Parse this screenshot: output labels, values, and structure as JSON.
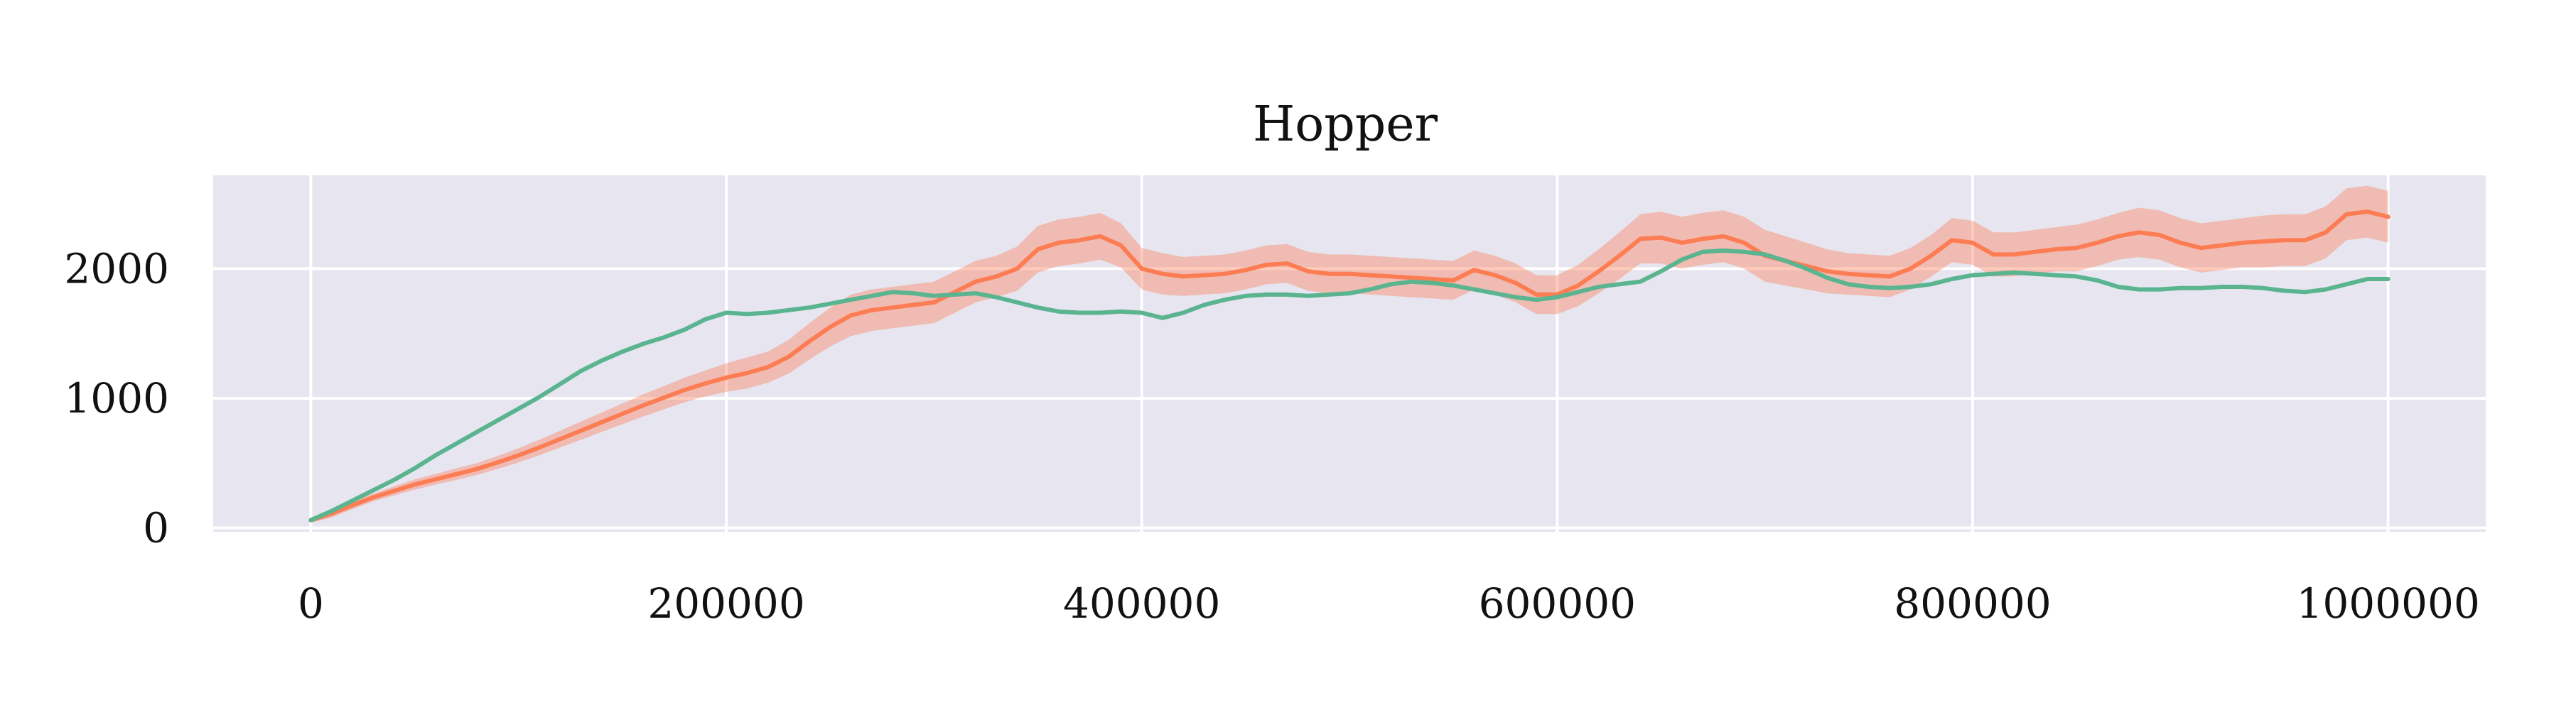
{
  "chart_data": {
    "type": "line",
    "title": "Hopper",
    "xlabel": "",
    "ylabel": "",
    "xlim": [
      -47000,
      1047000
    ],
    "ylim": [
      -30,
      2720
    ],
    "x_ticks": [
      0,
      200000,
      400000,
      600000,
      800000,
      1000000
    ],
    "x_tick_labels": [
      "0",
      "200000",
      "400000",
      "600000",
      "800000",
      "1000000"
    ],
    "y_ticks": [
      0,
      1000,
      2000
    ],
    "y_tick_labels": [
      "0",
      "1000",
      "2000"
    ],
    "grid": true,
    "legend": "none",
    "background": "#e6e5f0",
    "x": [
      0,
      10000,
      20000,
      30000,
      40000,
      50000,
      60000,
      70000,
      80000,
      90000,
      100000,
      110000,
      120000,
      130000,
      140000,
      150000,
      160000,
      170000,
      180000,
      190000,
      200000,
      210000,
      220000,
      230000,
      240000,
      250000,
      260000,
      270000,
      280000,
      290000,
      300000,
      310000,
      320000,
      330000,
      340000,
      350000,
      360000,
      370000,
      380000,
      390000,
      400000,
      410000,
      420000,
      430000,
      440000,
      450000,
      460000,
      470000,
      480000,
      490000,
      500000,
      510000,
      520000,
      530000,
      540000,
      550000,
      560000,
      570000,
      580000,
      590000,
      600000,
      610000,
      620000,
      630000,
      640000,
      650000,
      660000,
      670000,
      680000,
      690000,
      700000,
      710000,
      720000,
      730000,
      740000,
      750000,
      760000,
      770000,
      780000,
      790000,
      800000,
      810000,
      820000,
      830000,
      840000,
      850000,
      860000,
      870000,
      880000,
      890000,
      900000,
      910000,
      920000,
      930000,
      940000,
      950000,
      960000,
      970000,
      980000,
      990000,
      1000000
    ],
    "series": [
      {
        "color": "#fc7d54",
        "values": [
          60,
          110,
          175,
          235,
          285,
          335,
          375,
          415,
          455,
          505,
          560,
          620,
          685,
          750,
          815,
          880,
          945,
          1005,
          1065,
          1115,
          1160,
          1195,
          1240,
          1320,
          1440,
          1550,
          1640,
          1680,
          1700,
          1720,
          1740,
          1820,
          1900,
          1940,
          2000,
          2150,
          2200,
          2220,
          2250,
          2180,
          2000,
          1960,
          1940,
          1950,
          1960,
          1990,
          2030,
          2040,
          1980,
          1960,
          1960,
          1950,
          1940,
          1930,
          1920,
          1910,
          1990,
          1950,
          1890,
          1800,
          1800,
          1870,
          1980,
          2100,
          2230,
          2240,
          2200,
          2230,
          2250,
          2200,
          2100,
          2060,
          2020,
          1980,
          1960,
          1950,
          1940,
          2000,
          2100,
          2220,
          2200,
          2110,
          2110,
          2130,
          2150,
          2160,
          2200,
          2250,
          2280,
          2260,
          2200,
          2160,
          2180,
          2200,
          2210,
          2220,
          2220,
          2280,
          2420,
          2440,
          2400
        ],
        "band": [
          20,
          30,
          30,
          30,
          35,
          40,
          40,
          45,
          45,
          50,
          55,
          60,
          65,
          70,
          75,
          80,
          85,
          90,
          95,
          100,
          110,
          120,
          120,
          130,
          140,
          150,
          160,
          160,
          160,
          160,
          160,
          160,
          160,
          160,
          170,
          180,
          180,
          180,
          180,
          170,
          160,
          160,
          150,
          150,
          150,
          150,
          150,
          150,
          150,
          150,
          150,
          150,
          150,
          150,
          150,
          150,
          150,
          150,
          150,
          150,
          150,
          160,
          170,
          180,
          190,
          200,
          200,
          200,
          200,
          200,
          200,
          190,
          180,
          170,
          160,
          160,
          160,
          160,
          160,
          170,
          170,
          170,
          170,
          170,
          170,
          180,
          180,
          180,
          190,
          190,
          190,
          190,
          190,
          190,
          200,
          200,
          200,
          200,
          200,
          200,
          200
        ]
      },
      {
        "color": "#5ab48f",
        "values": [
          60,
          130,
          210,
          290,
          370,
          460,
          560,
          650,
          740,
          830,
          920,
          1010,
          1110,
          1210,
          1290,
          1360,
          1420,
          1470,
          1530,
          1610,
          1660,
          1650,
          1660,
          1680,
          1700,
          1730,
          1760,
          1790,
          1820,
          1810,
          1790,
          1800,
          1810,
          1780,
          1740,
          1700,
          1670,
          1660,
          1660,
          1670,
          1660,
          1620,
          1660,
          1720,
          1760,
          1790,
          1800,
          1800,
          1790,
          1800,
          1810,
          1840,
          1880,
          1900,
          1890,
          1870,
          1840,
          1810,
          1780,
          1760,
          1780,
          1820,
          1860,
          1880,
          1900,
          1980,
          2070,
          2130,
          2140,
          2130,
          2110,
          2060,
          2000,
          1930,
          1880,
          1860,
          1850,
          1860,
          1880,
          1920,
          1950,
          1960,
          1970,
          1960,
          1950,
          1940,
          1910,
          1860,
          1840,
          1840,
          1850,
          1850,
          1860,
          1860,
          1850,
          1830,
          1820,
          1840,
          1880,
          1920,
          1920
        ]
      }
    ]
  }
}
